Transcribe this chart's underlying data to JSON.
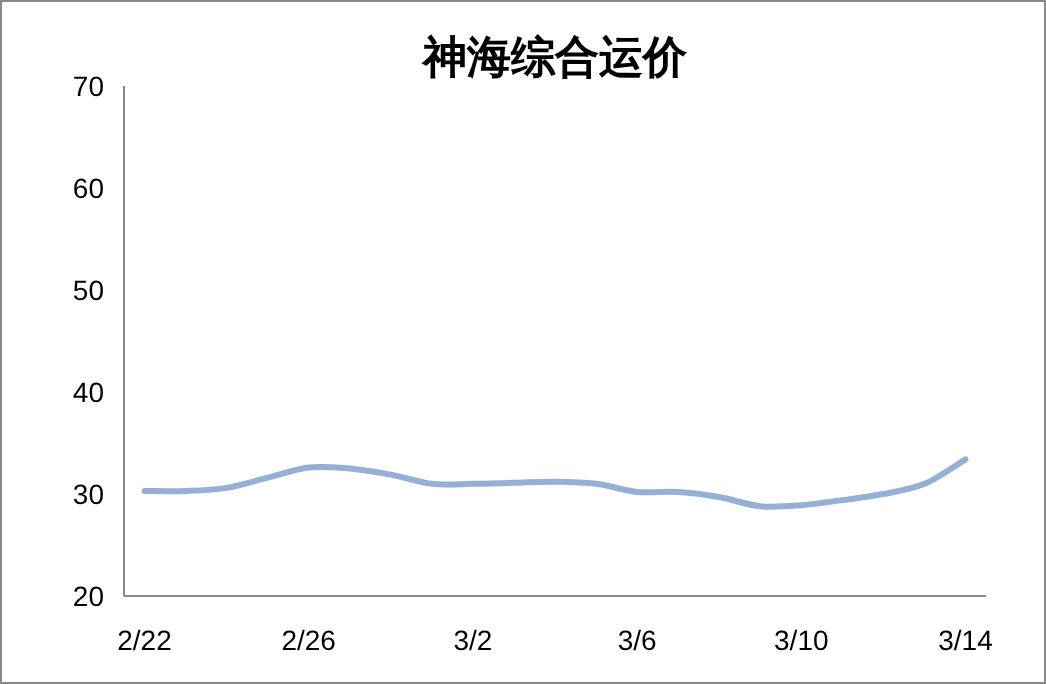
{
  "chart_data": {
    "type": "line",
    "title": "神海综合运价",
    "categories": [
      "2/22",
      null,
      null,
      null,
      "2/26",
      null,
      null,
      null,
      "3/2",
      null,
      null,
      null,
      "3/6",
      null,
      null,
      null,
      "3/10",
      null,
      null,
      null,
      "3/14"
    ],
    "series": [
      {
        "color": "#95b0d6",
        "values": [
          30.3,
          30.3,
          30.6,
          31.6,
          32.6,
          32.5,
          31.9,
          31.0,
          31.0,
          31.1,
          31.2,
          31.0,
          30.2,
          30.2,
          29.7,
          28.8,
          28.9,
          29.4,
          30.0,
          31.0,
          33.4
        ]
      }
    ],
    "ylim": [
      20,
      70
    ],
    "yticks": [
      20,
      30,
      40,
      50,
      60,
      70
    ],
    "grid": false,
    "marker": "none",
    "line_style": "solid"
  }
}
